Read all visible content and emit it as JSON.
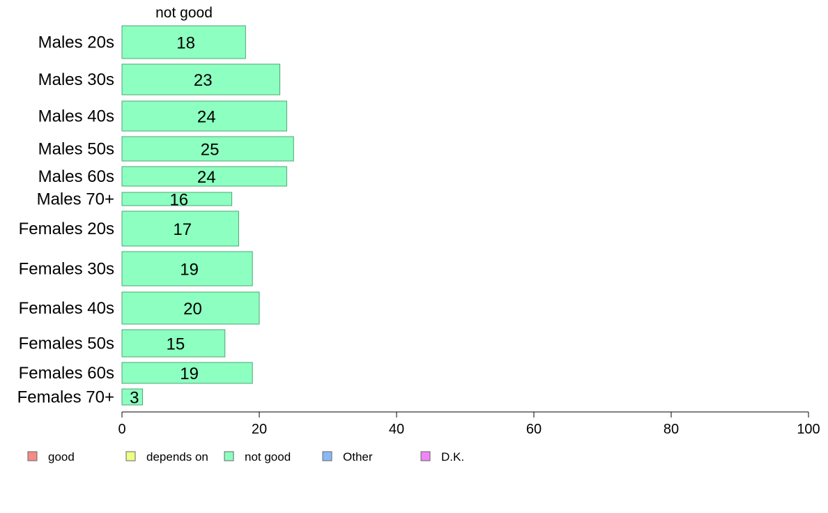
{
  "chart_data": {
    "type": "bar",
    "orientation": "horizontal",
    "column_title": "not good",
    "categories": [
      "Males 20s",
      "Males 30s",
      "Males 40s",
      "Males 50s",
      "Males 60s",
      "Males 70+",
      "Females 20s",
      "Females 30s",
      "Females 40s",
      "Females 50s",
      "Females 60s",
      "Females 70+"
    ],
    "series": [
      {
        "name": "not good",
        "values": [
          18,
          23,
          24,
          25,
          24,
          16,
          17,
          19,
          20,
          15,
          19,
          3
        ],
        "color": "#8dffc0"
      }
    ],
    "xlim": [
      0,
      100
    ],
    "xticks": [
      0,
      20,
      40,
      60,
      80,
      100
    ],
    "legend_position": "bottom",
    "legend": [
      {
        "label": "good",
        "color": "#f58a87"
      },
      {
        "label": "depends on",
        "color": "#eeff86"
      },
      {
        "label": "not good",
        "color": "#8dffc0"
      },
      {
        "label": "Other",
        "color": "#8ab8f7"
      },
      {
        "label": "D.K.",
        "color": "#f085f5"
      }
    ]
  }
}
